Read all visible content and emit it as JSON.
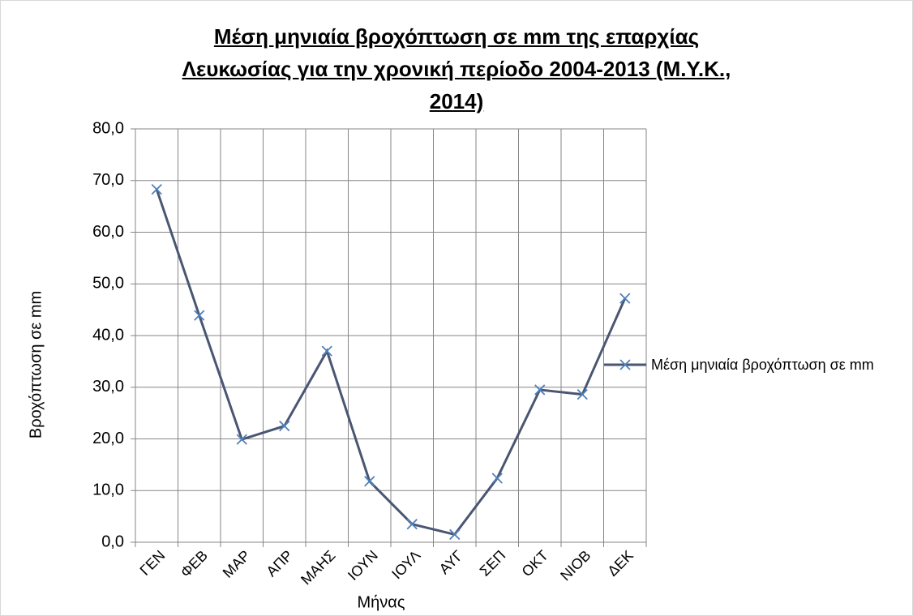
{
  "chart_data": {
    "type": "line",
    "title": [
      "Μέση μηνιαία βροχόπτωση σε mm της επαρχίας",
      "Λευκωσίας για την χρονική περίοδο 2004-2013 (Μ.Υ.Κ.,",
      "2014)"
    ],
    "x_label": "Μήνας",
    "y_label": "Βροχόπτωση σε mm",
    "categories": [
      "ΓΕΝ",
      "ΦΕΒ",
      "ΜΑΡ",
      "ΑΠΡ",
      "ΜΑΗΣ",
      "ΙΟΥΝ",
      "ΙΟΥΛ",
      "ΑΥΓ",
      "ΣΕΠ",
      "ΟΚΤ",
      "ΝΙΟΒ",
      "ΔΕΚ"
    ],
    "series": [
      {
        "name": "Μέση μηνιαία βροχόπτωση σε mm",
        "color": "#4a5672",
        "marker_color": "#4f81bd",
        "values": [
          68.3,
          43.9,
          19.9,
          22.5,
          37.0,
          11.8,
          3.5,
          1.5,
          12.4,
          29.5,
          28.6,
          47.2
        ]
      }
    ],
    "ylim": [
      0,
      80
    ],
    "yticks": [
      {
        "value": 0,
        "label": "0,0"
      },
      {
        "value": 10,
        "label": "10,0"
      },
      {
        "value": 20,
        "label": "20,0"
      },
      {
        "value": 30,
        "label": "30,0"
      },
      {
        "value": 40,
        "label": "40,0"
      },
      {
        "value": 50,
        "label": "50,0"
      },
      {
        "value": 60,
        "label": "60,0"
      },
      {
        "value": 70,
        "label": "70,0"
      },
      {
        "value": 80,
        "label": "80,0"
      }
    ],
    "grid": true,
    "legend": "right"
  }
}
